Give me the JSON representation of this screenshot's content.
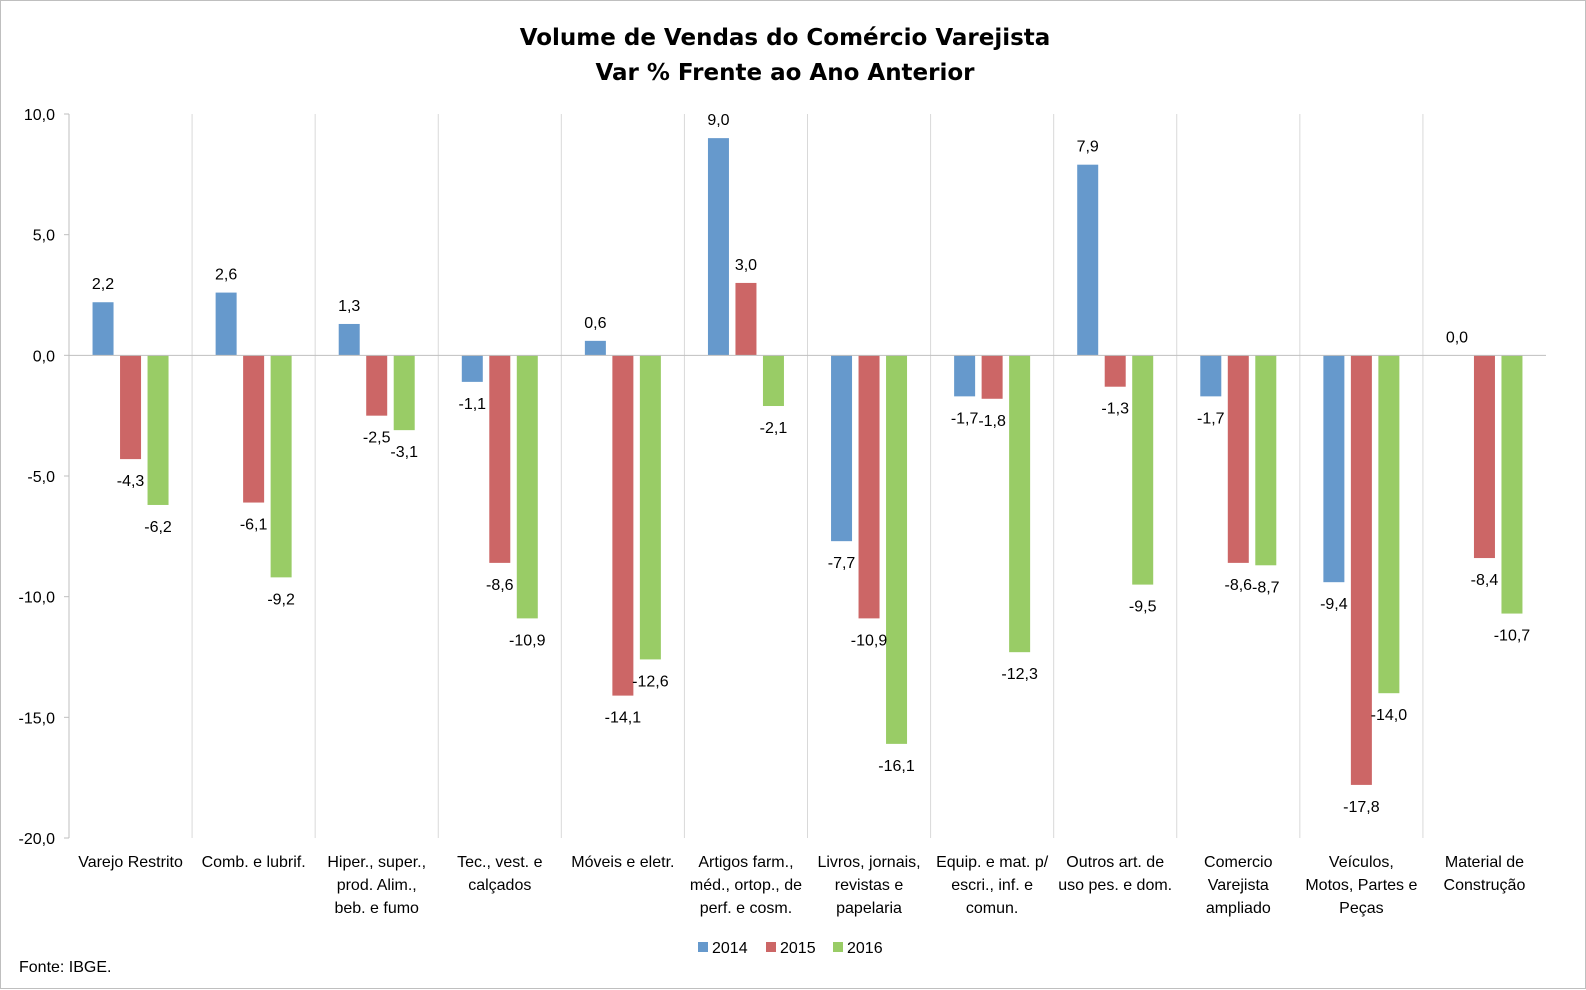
{
  "chart_data": {
    "type": "bar",
    "title": "Volume de Vendas do Comércio Varejista",
    "subtitle": "Var % Frente ao Ano Anterior",
    "ylim": [
      -20,
      10
    ],
    "yticks": [
      "10,0",
      "5,0",
      "0,0",
      "-5,0",
      "-10,0",
      "-15,0",
      "-20,0"
    ],
    "ytick_values": [
      10,
      5,
      0,
      -5,
      -10,
      -15,
      -20
    ],
    "grid": "vertical category separators",
    "legend_position": "bottom",
    "categories": [
      [
        "Varejo Restrito"
      ],
      [
        "Comb. e lubrif."
      ],
      [
        "Hiper., super.,",
        "prod. Alim.,",
        "beb. e fumo"
      ],
      [
        "Tec., vest. e",
        "calçados"
      ],
      [
        "Móveis e eletr."
      ],
      [
        "Artigos farm.,",
        "méd., ortop., de",
        "perf. e cosm."
      ],
      [
        "Livros, jornais,",
        "revistas e",
        "papelaria"
      ],
      [
        "Equip. e mat. p/",
        "escri., inf. e",
        "comun."
      ],
      [
        "Outros art. de",
        "uso pes. e dom."
      ],
      [
        "Comercio",
        "Varejista",
        "ampliado"
      ],
      [
        "Veículos,",
        "Motos, Partes e",
        "Peças"
      ],
      [
        "Material de",
        "Construção"
      ]
    ],
    "series": [
      {
        "name": "2014",
        "color": "#6699cc",
        "values": [
          2.2,
          2.6,
          1.3,
          -1.1,
          0.6,
          9.0,
          -7.7,
          -1.7,
          7.9,
          -1.7,
          -9.4,
          0.0
        ],
        "labels": [
          "2,2",
          "2,6",
          "1,3",
          "-1,1",
          "0,6",
          "9,0",
          "-7,7",
          "-1,7",
          "7,9",
          "-1,7",
          "-9,4",
          "0,0"
        ]
      },
      {
        "name": "2015",
        "color": "#cc6666",
        "values": [
          -4.3,
          -6.1,
          -2.5,
          -8.6,
          -14.1,
          3.0,
          -10.9,
          -1.8,
          -1.3,
          -8.6,
          -17.8,
          -8.4
        ],
        "labels": [
          "-4,3",
          "-6,1",
          "-2,5",
          "-8,6",
          "-14,1",
          "3,0",
          "-10,9",
          "-1,8",
          "-1,3",
          "-8,6",
          "-17,8",
          "-8,4"
        ]
      },
      {
        "name": "2016",
        "color": "#99cc66",
        "values": [
          -6.2,
          -9.2,
          -3.1,
          -10.9,
          -12.6,
          -2.1,
          -16.1,
          -12.3,
          -9.5,
          -8.7,
          -14.0,
          -10.7
        ],
        "labels": [
          "-6,2",
          "-9,2",
          "-3,1",
          "-10,9",
          "-12,6",
          "-2,1",
          "-16,1",
          "-12,3",
          "-9,5",
          "-8,7",
          "-14,0",
          "-10,7"
        ]
      }
    ]
  },
  "source_note": "Fonte: IBGE."
}
